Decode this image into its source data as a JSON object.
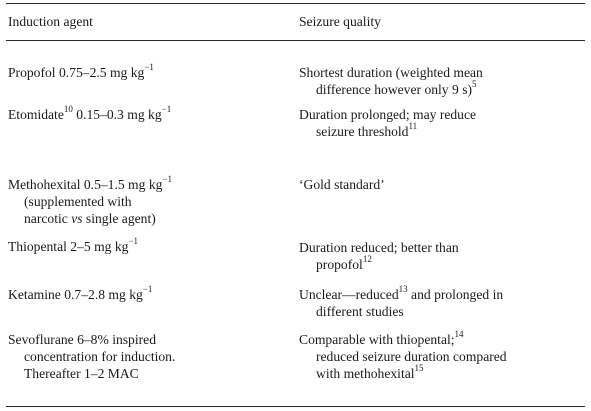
{
  "table": {
    "headers": {
      "col1": "Induction agent",
      "col2": "Seizure quality"
    },
    "rows": [
      {
        "agent": {
          "name": "Propofol 0.75–2.5 mg kg",
          "exp": "−1"
        },
        "quality": {
          "line1": "Shortest duration (weighted mean",
          "line2": "difference however only 9 s)",
          "ref": "5"
        }
      },
      {
        "agent": {
          "name": "Etomidate",
          "ref": "10",
          "dose": " 0.15–0.3 mg kg",
          "exp": "−1"
        },
        "quality": {
          "line1": "Duration prolonged; may reduce",
          "line2": "seizure threshold",
          "ref": "11"
        }
      },
      {
        "agent": {
          "name": "Methohexital 0.5–1.5 mg kg",
          "exp": "−1",
          "line2": "(supplemented with",
          "line3_a": "narcotic ",
          "line3_vs": "vs",
          "line3_b": " single agent)"
        },
        "quality": {
          "line1": "‘Gold standard’"
        }
      },
      {
        "agent": {
          "name": "Thiopental 2–5 mg kg",
          "exp": "−1"
        },
        "quality": {
          "line1": "Duration reduced; better than",
          "line2": "propofol",
          "ref": "12"
        }
      },
      {
        "agent": {
          "name": "Ketamine 0.7–2.8 mg kg",
          "exp": "−1"
        },
        "quality": {
          "line1a": "Unclear—reduced",
          "ref1": "13",
          "line1b": " and prolonged in",
          "line2": "different studies"
        }
      },
      {
        "agent": {
          "line1": "Sevoflurane 6–8% inspired",
          "line2": "concentration for induction.",
          "line3": "Thereafter 1–2 MAC"
        },
        "quality": {
          "line1": "Comparable with thiopental;",
          "ref1": "14",
          "line2": "reduced seizure duration compared",
          "line3": "with methohexital",
          "ref2": "15"
        }
      }
    ]
  }
}
